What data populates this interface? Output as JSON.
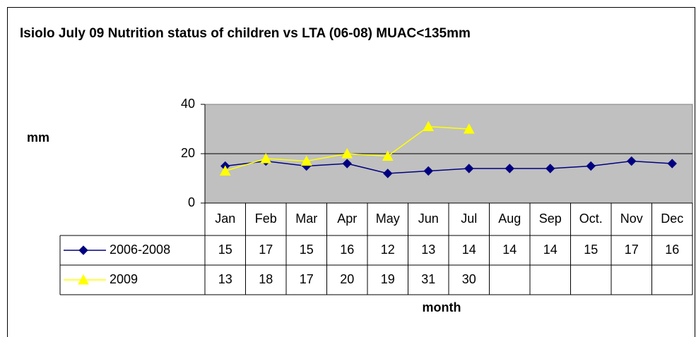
{
  "chart_data": {
    "type": "line",
    "title": "Isiolo July 09 Nutrition status of children vs LTA (06-08) MUAC<135mm",
    "y_label": "mm",
    "x_label": "month",
    "categories": [
      "Jan",
      "Feb",
      "Mar",
      "Apr",
      "May",
      "Jun",
      "Jul",
      "Aug",
      "Sep",
      "Oct.",
      "Nov",
      "Dec"
    ],
    "series": [
      {
        "name": "2006-2008",
        "color": "#000080",
        "marker": "diamond",
        "values": [
          15,
          17,
          15,
          16,
          12,
          13,
          14,
          14,
          14,
          15,
          17,
          16
        ]
      },
      {
        "name": "2009",
        "color": "#ffff00",
        "marker": "triangle",
        "values": [
          13,
          18,
          17,
          20,
          19,
          31,
          30,
          null,
          null,
          null,
          null,
          null
        ]
      }
    ],
    "ylim": [
      0,
      40
    ],
    "yticks": [
      0,
      20,
      40
    ],
    "grid": true,
    "data_table": true
  }
}
